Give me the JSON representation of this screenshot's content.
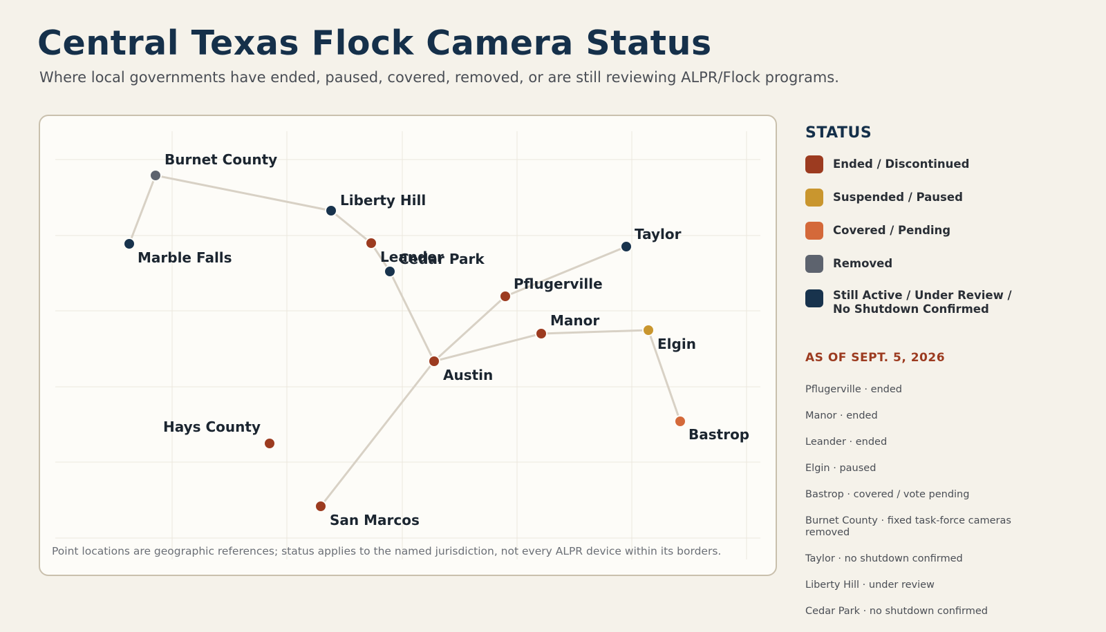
{
  "header": {
    "title": "Central Texas Flock Camera Status",
    "subtitle": "Where local governments have ended, paused, covered, removed, or are still reviewing ALPR/Flock programs."
  },
  "colors": {
    "ended": "#9c3b20",
    "suspended": "#c9962e",
    "covered": "#d4693a",
    "removed": "#5d636e",
    "active": "#18334d",
    "connector": "#d8d1c5"
  },
  "legend": {
    "title": "STATUS",
    "items": [
      {
        "key": "ended",
        "label": "Ended / Discontinued"
      },
      {
        "key": "suspended",
        "label": "Suspended / Paused"
      },
      {
        "key": "covered",
        "label": "Covered / Pending"
      },
      {
        "key": "removed",
        "label": "Removed"
      },
      {
        "key": "active",
        "label": "Still Active / Under Review /\nNo Shutdown Confirmed"
      }
    ]
  },
  "as_of": "AS OF SEPT. 5, 2026",
  "notes": [
    "Pflugerville · ended",
    "Manor · ended",
    "Leander · ended",
    "Elgin · paused",
    "Bastrop · covered / vote pending",
    "Burnet County · fixed task-force cameras removed",
    "Taylor · no shutdown confirmed",
    "Liberty Hill · under review",
    "Cedar Park · no shutdown confirmed"
  ],
  "map": {
    "places": [
      {
        "name": "Burnet County",
        "status": "removed"
      },
      {
        "name": "Marble Falls",
        "status": "active"
      },
      {
        "name": "Liberty Hill",
        "status": "active"
      },
      {
        "name": "Leander",
        "status": "ended"
      },
      {
        "name": "Cedar Park",
        "status": "active"
      },
      {
        "name": "Taylor",
        "status": "active"
      },
      {
        "name": "Pflugerville",
        "status": "ended"
      },
      {
        "name": "Manor",
        "status": "ended"
      },
      {
        "name": "Elgin",
        "status": "suspended"
      },
      {
        "name": "Austin",
        "status": "ended"
      },
      {
        "name": "Bastrop",
        "status": "covered"
      },
      {
        "name": "Hays County",
        "status": "ended"
      },
      {
        "name": "San Marcos",
        "status": "ended"
      }
    ],
    "connections": [
      [
        "Marble Falls",
        "Burnet County"
      ],
      [
        "Burnet County",
        "Liberty Hill"
      ],
      [
        "Liberty Hill",
        "Leander"
      ],
      [
        "Leander",
        "Cedar Park"
      ],
      [
        "Cedar Park",
        "Austin"
      ],
      [
        "Austin",
        "Pflugerville"
      ],
      [
        "Pflugerville",
        "Taylor"
      ],
      [
        "Austin",
        "Manor"
      ],
      [
        "Manor",
        "Elgin"
      ],
      [
        "Elgin",
        "Bastrop"
      ],
      [
        "Austin",
        "San Marcos"
      ]
    ],
    "footnote": "Point locations are geographic references; status applies to the named jurisdiction, not every ALPR device within its borders."
  }
}
